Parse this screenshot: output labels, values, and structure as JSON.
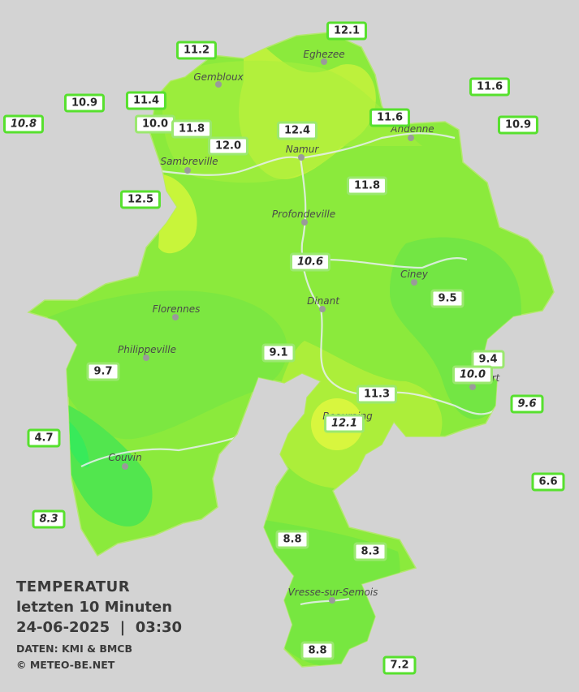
{
  "header": {
    "title": "TEMPERATUR",
    "subtitle": "letzten 10 Minuten",
    "datetime": "24-06-2025  |  03:30",
    "source": "DATEN: KMI & BMCB",
    "copyright": "© METEO-BE.NET"
  },
  "colors": {
    "background": "#d3d3d3",
    "base_fill": "#8bea3c",
    "warm_fill": "#c8f53a",
    "cool_fill": "#5be84a",
    "label_border": "#57e02e"
  },
  "cities": [
    "Eghezee",
    "Gembloux",
    "Andenne",
    "Namur",
    "Sambreville",
    "Profondeville",
    "Ciney",
    "Dinant",
    "Florennes",
    "Philippeville",
    "Rochefort",
    "Beauraing",
    "Couvin",
    "Vresse-sur-Semois"
  ],
  "stations": [
    {
      "value": "12.1",
      "style": "normal"
    },
    {
      "value": "11.2",
      "style": "normal"
    },
    {
      "value": "11.6",
      "style": "normal"
    },
    {
      "value": "10.9",
      "style": "normal"
    },
    {
      "value": "11.4",
      "style": "normal"
    },
    {
      "value": "10.8",
      "style": "outside"
    },
    {
      "value": "10.0",
      "style": "normal"
    },
    {
      "value": "11.8",
      "style": "normal"
    },
    {
      "value": "11.6",
      "style": "normal"
    },
    {
      "value": "10.9",
      "style": "normal"
    },
    {
      "value": "12.4",
      "style": "normal"
    },
    {
      "value": "12.0",
      "style": "normal"
    },
    {
      "value": "11.8",
      "style": "normal"
    },
    {
      "value": "12.5",
      "style": "normal"
    },
    {
      "value": "10.6",
      "style": "outside"
    },
    {
      "value": "9.5",
      "style": "normal"
    },
    {
      "value": "9.1",
      "style": "normal"
    },
    {
      "value": "9.4",
      "style": "normal"
    },
    {
      "value": "10.0",
      "style": "outside"
    },
    {
      "value": "9.7",
      "style": "normal"
    },
    {
      "value": "11.3",
      "style": "normal"
    },
    {
      "value": "9.6",
      "style": "outside"
    },
    {
      "value": "12.1",
      "style": "outside"
    },
    {
      "value": "4.7",
      "style": "normal"
    },
    {
      "value": "6.6",
      "style": "normal"
    },
    {
      "value": "8.3",
      "style": "outside"
    },
    {
      "value": "8.8",
      "style": "normal"
    },
    {
      "value": "8.3",
      "style": "normal"
    },
    {
      "value": "8.8",
      "style": "normal"
    },
    {
      "value": "7.2",
      "style": "normal"
    }
  ]
}
